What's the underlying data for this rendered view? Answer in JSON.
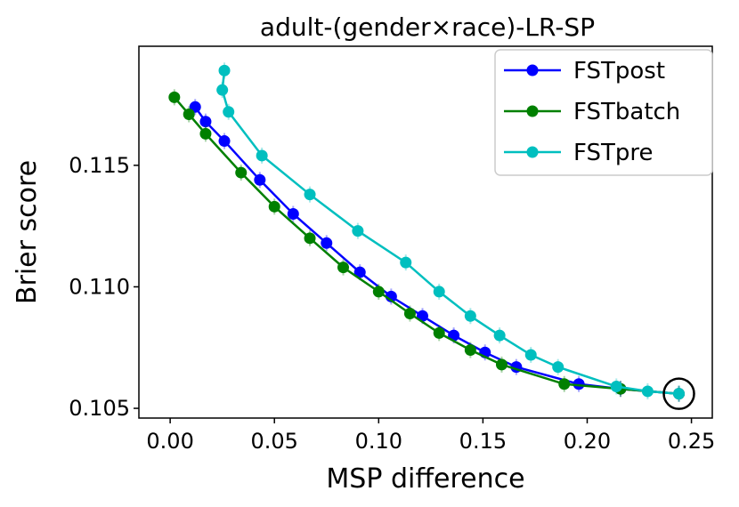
{
  "chart_data": {
    "type": "line",
    "title": "adult-(gender×race)-LR-SP",
    "xlabel": "MSP difference",
    "ylabel": "Brier score",
    "xlim": [
      -0.015,
      0.26
    ],
    "ylim": [
      0.1046,
      0.1199
    ],
    "xticks": [
      0.0,
      0.05,
      0.1,
      0.15,
      0.2,
      0.25
    ],
    "xtick_labels": [
      "0.00",
      "0.05",
      "0.10",
      "0.15",
      "0.20",
      "0.25"
    ],
    "yticks": [
      0.105,
      0.11,
      0.115
    ],
    "ytick_labels": [
      "0.105",
      "0.110",
      "0.115"
    ],
    "legend_position": "top-right",
    "series": [
      {
        "name": "FSTpost",
        "color": "#0000ff",
        "x": [
          0.012,
          0.017,
          0.026,
          0.043,
          0.059,
          0.075,
          0.091,
          0.106,
          0.121,
          0.136,
          0.151,
          0.166,
          0.196,
          0.216,
          0.244
        ],
        "y": [
          0.1174,
          0.1168,
          0.116,
          0.1144,
          0.113,
          0.1118,
          0.1106,
          0.1096,
          0.1088,
          0.108,
          0.1073,
          0.1067,
          0.106,
          0.1058,
          0.1056
        ]
      },
      {
        "name": "FSTbatch",
        "color": "#008000",
        "x": [
          0.002,
          0.009,
          0.017,
          0.034,
          0.05,
          0.067,
          0.083,
          0.1,
          0.115,
          0.129,
          0.144,
          0.159,
          0.189,
          0.216,
          0.244
        ],
        "y": [
          0.1178,
          0.1171,
          0.1163,
          0.1147,
          0.1133,
          0.112,
          0.1108,
          0.1098,
          0.1089,
          0.1081,
          0.1074,
          0.1068,
          0.106,
          0.1058,
          0.1056
        ]
      },
      {
        "name": "FSTpre",
        "color": "#00bfbf",
        "x": [
          0.026,
          0.025,
          0.028,
          0.044,
          0.067,
          0.09,
          0.113,
          0.129,
          0.144,
          0.158,
          0.173,
          0.186,
          0.214,
          0.229,
          0.244
        ],
        "y": [
          0.1189,
          0.1181,
          0.1172,
          0.1154,
          0.1138,
          0.1123,
          0.111,
          0.1098,
          0.1088,
          0.108,
          0.1072,
          0.1067,
          0.1059,
          0.1057,
          0.1056
        ]
      }
    ],
    "annotations": [
      {
        "type": "circle",
        "x": 0.244,
        "y": 0.1056
      }
    ]
  }
}
